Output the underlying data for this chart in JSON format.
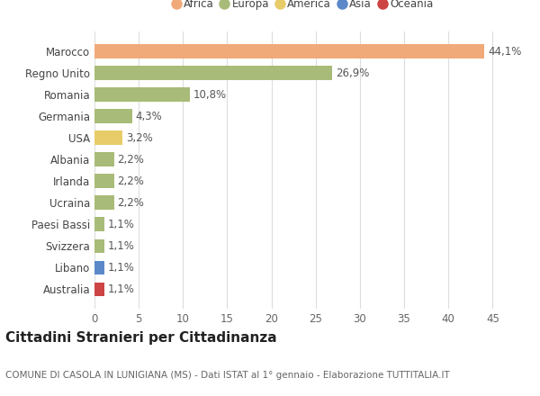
{
  "title": "Cittadini Stranieri per Cittadinanza",
  "subtitle": "COMUNE DI CASOLA IN LUNIGIANA (MS) - Dati ISTAT al 1° gennaio - Elaborazione TUTTITALIA.IT",
  "countries": [
    "Australia",
    "Libano",
    "Svizzera",
    "Paesi Bassi",
    "Ucraina",
    "Irlanda",
    "Albania",
    "USA",
    "Germania",
    "Romania",
    "Regno Unito",
    "Marocco"
  ],
  "values": [
    1.1,
    1.1,
    1.1,
    1.1,
    2.2,
    2.2,
    2.2,
    3.2,
    4.3,
    10.8,
    26.9,
    44.1
  ],
  "labels": [
    "1,1%",
    "1,1%",
    "1,1%",
    "1,1%",
    "2,2%",
    "2,2%",
    "2,2%",
    "3,2%",
    "4,3%",
    "10,8%",
    "26,9%",
    "44,1%"
  ],
  "colors": [
    "#cc4444",
    "#5b88c9",
    "#a8bb78",
    "#a8bb78",
    "#a8bb78",
    "#a8bb78",
    "#a8bb78",
    "#e8cc6a",
    "#a8bb78",
    "#a8bb78",
    "#a8bb78",
    "#f0aa7a"
  ],
  "legend_order": [
    "Africa",
    "Europa",
    "America",
    "Asia",
    "Oceania"
  ],
  "continent_colors": {
    "Africa": "#f0aa7a",
    "Europa": "#a8bb78",
    "America": "#e8cc6a",
    "Asia": "#5b88c9",
    "Oceania": "#cc4444"
  },
  "xlim": [
    0,
    47
  ],
  "xticks": [
    0,
    5,
    10,
    15,
    20,
    25,
    30,
    35,
    40,
    45
  ],
  "bg_color": "#ffffff",
  "grid_color": "#dddddd",
  "bar_height": 0.65,
  "label_fontsize": 8.5,
  "title_fontsize": 11,
  "subtitle_fontsize": 7.5,
  "tick_fontsize": 8.5,
  "legend_fontsize": 8.5
}
